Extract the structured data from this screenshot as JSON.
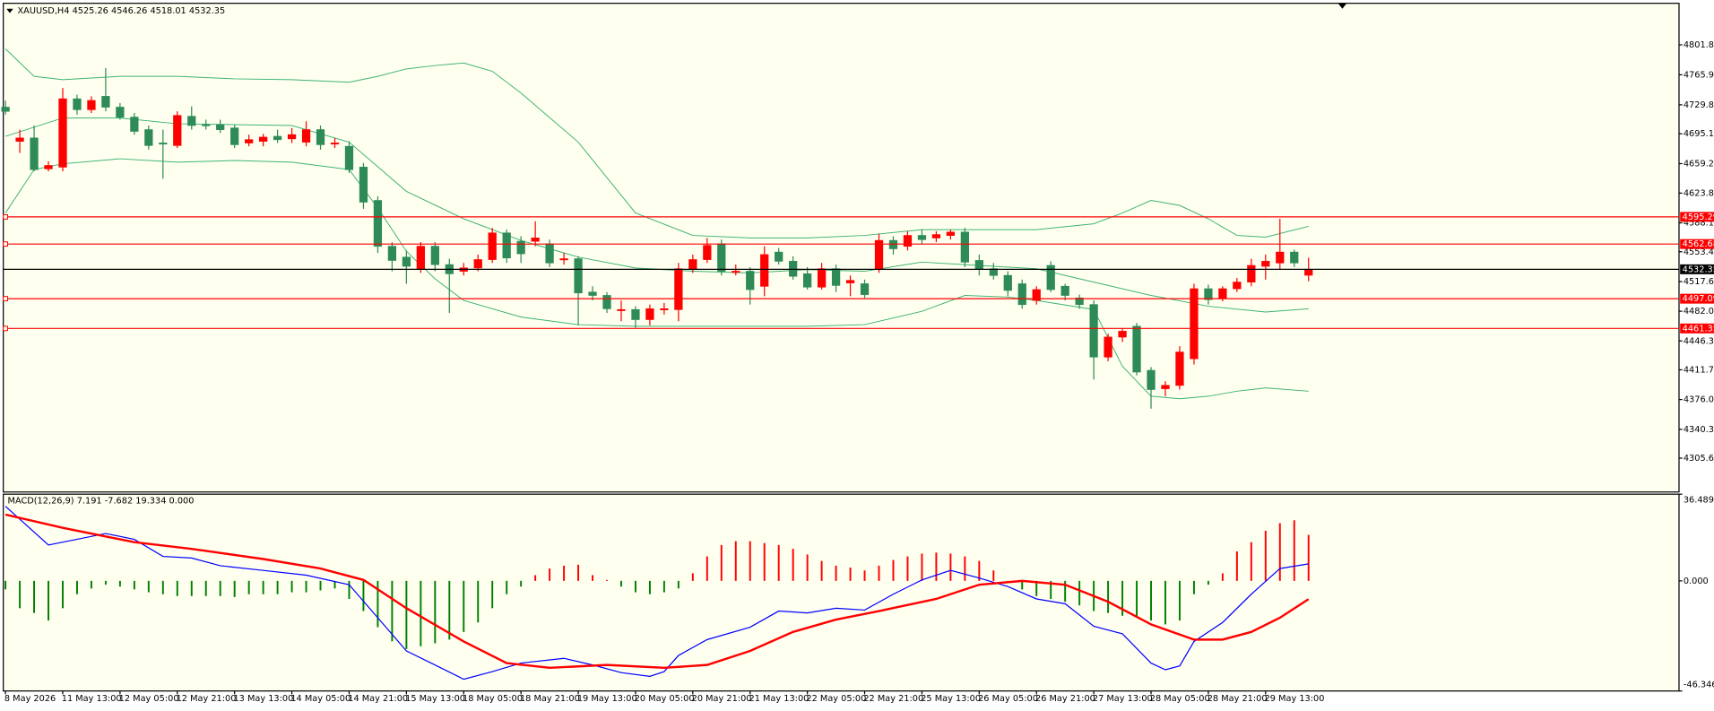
{
  "chart_data": [
    {
      "type": "candlestick",
      "symbol": "XAUUSD,H4",
      "categories": [
        "8 May 2026",
        null,
        null,
        null,
        "11 May 13:00",
        null,
        null,
        null,
        "12 May 05:00",
        null,
        null,
        null,
        "12 May 21:00",
        null,
        null,
        null,
        "13 May 13:00",
        null,
        null,
        null,
        "14 May 05:00",
        null,
        null,
        null,
        "14 May 21:00",
        null,
        null,
        null,
        "15 May 13:00",
        null,
        null,
        null,
        "18 May 05:00",
        null,
        null,
        null,
        "18 May 21:00",
        null,
        null,
        null,
        "19 May 13:00",
        null,
        null,
        null,
        "20 May 05:00",
        null,
        null,
        null,
        "20 May 21:00",
        null,
        null,
        null,
        "21 May 13:00",
        null,
        null,
        null,
        "22 May 05:00",
        null,
        null,
        null,
        "22 May 21:00",
        null,
        null,
        null,
        "25 May 13:00",
        null,
        null,
        null,
        "26 May 05:00",
        null,
        null,
        null,
        "26 May 21:00",
        null,
        null,
        null,
        "27 May 13:00",
        null,
        null,
        null,
        "28 May 05:00",
        null,
        null,
        null,
        "28 May 21:00",
        null,
        null,
        null,
        "29 May 13:00",
        null,
        null,
        null
      ],
      "open": [
        4727,
        4686,
        4690,
        4653,
        4655,
        4737,
        4724,
        4740,
        4727,
        4715,
        4700,
        4684,
        4681,
        4716,
        4706,
        4706,
        4702,
        4684,
        4686,
        4692,
        4689,
        4685,
        4700,
        4683,
        4680,
        4655,
        4615,
        4560,
        4547,
        4533,
        4560,
        4538,
        4530,
        4534,
        4544,
        4576,
        4566,
        4566,
        4563,
        4545,
        4545,
        4505,
        4501,
        4484,
        4484,
        4472,
        4485,
        4484,
        4533,
        4544,
        4563,
        4530,
        4530,
        4512,
        4553,
        4542,
        4527,
        4511,
        4533,
        4516,
        4515,
        4532,
        4567,
        4560,
        4573,
        4570,
        4573,
        4577,
        4543,
        4533,
        4525,
        4515,
        4495,
        4537,
        4512,
        4498,
        4490,
        4427,
        4451,
        4464,
        4411,
        4389,
        4393,
        4425,
        4509,
        4498,
        4509,
        4517,
        4536,
        4540,
        4553,
        4525.26
      ],
      "high": [
        4735,
        4700,
        4705,
        4662,
        4750,
        4742,
        4740,
        4774,
        4732,
        4720,
        4705,
        4700,
        4722,
        4728,
        4712,
        4712,
        4706,
        4694,
        4695,
        4700,
        4702,
        4710,
        4705,
        4690,
        4686,
        4660,
        4620,
        4565,
        4555,
        4565,
        4565,
        4545,
        4540,
        4550,
        4582,
        4580,
        4572,
        4590,
        4568,
        4552,
        4548,
        4512,
        4505,
        4495,
        4488,
        4490,
        4492,
        4540,
        4550,
        4570,
        4568,
        4538,
        4535,
        4560,
        4558,
        4548,
        4535,
        4540,
        4538,
        4525,
        4520,
        4575,
        4572,
        4578,
        4580,
        4578,
        4580,
        4582,
        4550,
        4540,
        4530,
        4520,
        4512,
        4542,
        4515,
        4502,
        4495,
        4455,
        4462,
        4468,
        4415,
        4398,
        4440,
        4515,
        4514,
        4512,
        4522,
        4545,
        4550,
        4593,
        4556,
        4546.26
      ],
      "low": [
        4718,
        4672,
        4650,
        4650,
        4650,
        4718,
        4720,
        4722,
        4712,
        4694,
        4676,
        4641,
        4678,
        4700,
        4700,
        4696,
        4678,
        4680,
        4680,
        4684,
        4684,
        4680,
        4676,
        4678,
        4648,
        4605,
        4552,
        4530,
        4515,
        4528,
        4530,
        4480,
        4525,
        4530,
        4540,
        4540,
        4540,
        4560,
        4535,
        4538,
        4465,
        4495,
        4480,
        4470,
        4462,
        4465,
        4478,
        4470,
        4528,
        4540,
        4525,
        4525,
        4490,
        4500,
        4538,
        4520,
        4508,
        4508,
        4505,
        4500,
        4498,
        4528,
        4550,
        4555,
        4562,
        4565,
        4568,
        4535,
        4525,
        4520,
        4500,
        4485,
        4490,
        4505,
        4495,
        4485,
        4400,
        4422,
        4445,
        4405,
        4365,
        4380,
        4388,
        4418,
        4490,
        4494,
        4505,
        4512,
        4520,
        4532,
        4535,
        4518.01
      ],
      "close": [
        4722,
        4690,
        4652,
        4657,
        4737,
        4724,
        4735,
        4727,
        4715,
        4698,
        4681,
        4683,
        4717,
        4705,
        4705,
        4700,
        4682,
        4688,
        4691,
        4688,
        4694,
        4700,
        4682,
        4684,
        4652,
        4613,
        4560,
        4543,
        4536,
        4560,
        4538,
        4527,
        4534,
        4544,
        4576,
        4546,
        4551,
        4570,
        4540,
        4545,
        4504,
        4501,
        4485,
        4484,
        4472,
        4485,
        4485,
        4533,
        4544,
        4561,
        4530,
        4530,
        4508,
        4550,
        4542,
        4524,
        4511,
        4533,
        4513,
        4519,
        4502,
        4567,
        4557,
        4573,
        4568,
        4574,
        4577,
        4541,
        4533,
        4525,
        4507,
        4490,
        4508,
        4508,
        4501,
        4490,
        4427,
        4451,
        4458,
        4409,
        4388,
        4393,
        4433,
        4509,
        4496,
        4509,
        4517,
        4537,
        4542,
        4553,
        4540,
        4532.35
      ],
      "up_color": "#ff0000",
      "down_color": "#2e8b57",
      "bands": [
        {
          "color": "#3cb371",
          "x": [
            0,
            2,
            4,
            8,
            12,
            16,
            20,
            24,
            26,
            28,
            30,
            32,
            34,
            36,
            40,
            44,
            48,
            52,
            56,
            60,
            64,
            68,
            72,
            76,
            78,
            80,
            82,
            84,
            86,
            88,
            91
          ],
          "values": [
            4797,
            4764,
            4760,
            4764,
            4764,
            4761,
            4760,
            4757,
            4764,
            4773,
            4777,
            4780,
            4770,
            4744,
            4685,
            4600,
            4573,
            4570,
            4570,
            4573,
            4580,
            4580,
            4580,
            4587,
            4600,
            4615,
            4609,
            4593,
            4573,
            4571,
            4584
          ]
        },
        {
          "color": "#3cb371",
          "x": [
            0,
            4,
            8,
            12,
            16,
            20,
            24,
            28,
            32,
            36,
            40,
            44,
            48,
            52,
            56,
            60,
            64,
            68,
            72,
            76,
            80,
            84,
            88,
            91
          ],
          "values": [
            4692,
            4714,
            4714,
            4707,
            4706,
            4705,
            4685,
            4626,
            4593,
            4567,
            4547,
            4534,
            4530,
            4528,
            4532,
            4530,
            4541,
            4537,
            4533,
            4517,
            4501,
            4488,
            4481,
            4485
          ]
        },
        {
          "color": "#3cb371",
          "x": [
            0,
            2,
            4,
            8,
            12,
            16,
            20,
            24,
            26,
            28,
            30,
            32,
            36,
            40,
            44,
            48,
            52,
            56,
            60,
            64,
            67,
            70,
            72,
            76,
            78,
            80,
            82,
            84,
            86,
            88,
            91
          ],
          "values": [
            4600,
            4652,
            4659,
            4665,
            4661,
            4663,
            4661,
            4652,
            4606,
            4554,
            4521,
            4495,
            4475,
            4466,
            4464,
            4464,
            4464,
            4464,
            4466,
            4482,
            4501,
            4499,
            4495,
            4484,
            4416,
            4380,
            4377,
            4380,
            4386,
            4390,
            4386
          ]
        }
      ],
      "levels": [
        4595.29,
        4562.68,
        4497.09,
        4461.35
      ],
      "level_color": "#ff0000",
      "ylim": [
        4265,
        4851.7
      ],
      "yticks": [
        4801.85,
        {
          "value": 4765.9,
          "label": "4765.90"
        },
        4729.85,
        {
          "value": 4695.1,
          "label": "4695.10"
        },
        {
          "value": 4659.2,
          "label": "4659.20"
        },
        {
          "value": 4623.8,
          "label": "4623.80"
        },
        {
          "value": 4588.1,
          "label": "4588.10"
        },
        4553.45,
        {
          "value": 4517.6,
          "label": "4517.60"
        },
        4482.05,
        4446.35,
        {
          "value": 4411.7,
          "label": "4411.70"
        },
        {
          "value": 4376,
          "label": "4376.00"
        },
        {
          "value": 4340.3,
          "label": "4340.30"
        },
        4305.65
      ]
    },
    {
      "type": "macd",
      "name": "MACD(12,26,9)",
      "histogram": {
        "up_color": "#ff0000",
        "down_color": "#008000",
        "values": [
          -3.6,
          -11.5,
          -13.5,
          -16.7,
          -11.5,
          -5.6,
          -3.2,
          -1.6,
          -2.4,
          -3.6,
          -4.8,
          -5.6,
          -6.4,
          -6.4,
          -6.4,
          -6.4,
          -6.8,
          -5.6,
          -5.6,
          -5.6,
          -4.8,
          -4.8,
          -4,
          -3.2,
          -7.6,
          -12.7,
          -19.5,
          -25.5,
          -28.7,
          -27.5,
          -26.3,
          -24.7,
          -21.5,
          -17.5,
          -11.5,
          -5.6,
          -2.4,
          2.4,
          5.2,
          6.4,
          6.8,
          2.4,
          0.4,
          -2.4,
          -4.8,
          -5.6,
          -4.8,
          -3.2,
          3.2,
          10.3,
          15.1,
          16.7,
          16.7,
          15.9,
          15.1,
          13.5,
          11.1,
          8.4,
          6.4,
          5.6,
          4.4,
          6.4,
          8.8,
          10.3,
          11.5,
          11.9,
          11.5,
          10.3,
          8.4,
          4.4,
          -0.8,
          -3.6,
          -6.4,
          -7.6,
          -8.8,
          -10.3,
          -12.7,
          -13.5,
          -14.7,
          -15.5,
          -16.7,
          -18.3,
          -16.7,
          -5.6,
          -1.6,
          3.2,
          12.4,
          16.3,
          21.1,
          24.3,
          25.5,
          19.334
        ]
      },
      "series": [
        {
          "color": "#0000ff",
          "width": 1,
          "x": [
            0,
            3,
            4,
            7,
            9,
            11,
            13,
            15,
            18,
            21,
            24,
            26,
            28,
            30,
            32,
            34,
            36,
            39,
            41,
            43,
            45,
            46,
            47,
            49,
            52,
            54,
            56,
            58,
            60,
            62,
            64,
            66,
            68,
            70,
            72,
            74,
            76,
            78,
            80,
            81,
            82,
            83,
            85,
            87,
            89,
            91
          ],
          "values": [
            31.4,
            15.1,
            16.3,
            19.9,
            17.5,
            10.3,
            9.6,
            6.4,
            4.4,
            2.4,
            -1.6,
            -15.5,
            -29.5,
            -35.4,
            -41.4,
            -38.2,
            -34.6,
            -32.6,
            -35.4,
            -38.6,
            -40.2,
            -38.2,
            -31.4,
            -24.7,
            -19.5,
            -12.7,
            -13.5,
            -11.5,
            -12.3,
            -5.6,
            0.4,
            4.4,
            1.2,
            -2.4,
            -7.6,
            -9.6,
            -19.1,
            -22.3,
            -34.6,
            -37.4,
            -35.8,
            -25.5,
            -17.5,
            -5.6,
            5.2,
            7.191
          ]
        },
        {
          "color": "#ff0000",
          "width": 2,
          "x": [
            0,
            4,
            9,
            13,
            18,
            22,
            25,
            28,
            32,
            35,
            38,
            42,
            46,
            49,
            52,
            55,
            58,
            61,
            65,
            68,
            71,
            74,
            77,
            80,
            83,
            85,
            87,
            89,
            91
          ],
          "values": [
            27.9,
            22.3,
            16.3,
            13.5,
            9.2,
            5.2,
            0.4,
            -11.5,
            -25.5,
            -34.6,
            -36.6,
            -35.4,
            -36.6,
            -35.4,
            -29.5,
            -21.5,
            -16.3,
            -12.7,
            -7.6,
            -1.6,
            0,
            -1.6,
            -8.8,
            -18.3,
            -24.7,
            -24.7,
            -21.5,
            -15.5,
            -7.682
          ]
        }
      ],
      "extra_value": {
        "value": 0,
        "label": "0.000"
      },
      "ylim": [
        -46.346,
        36.489
      ],
      "yticks": [
        36.489,
        {
          "value": 0,
          "label": "0.000"
        },
        -46.346
      ]
    }
  ]
}
